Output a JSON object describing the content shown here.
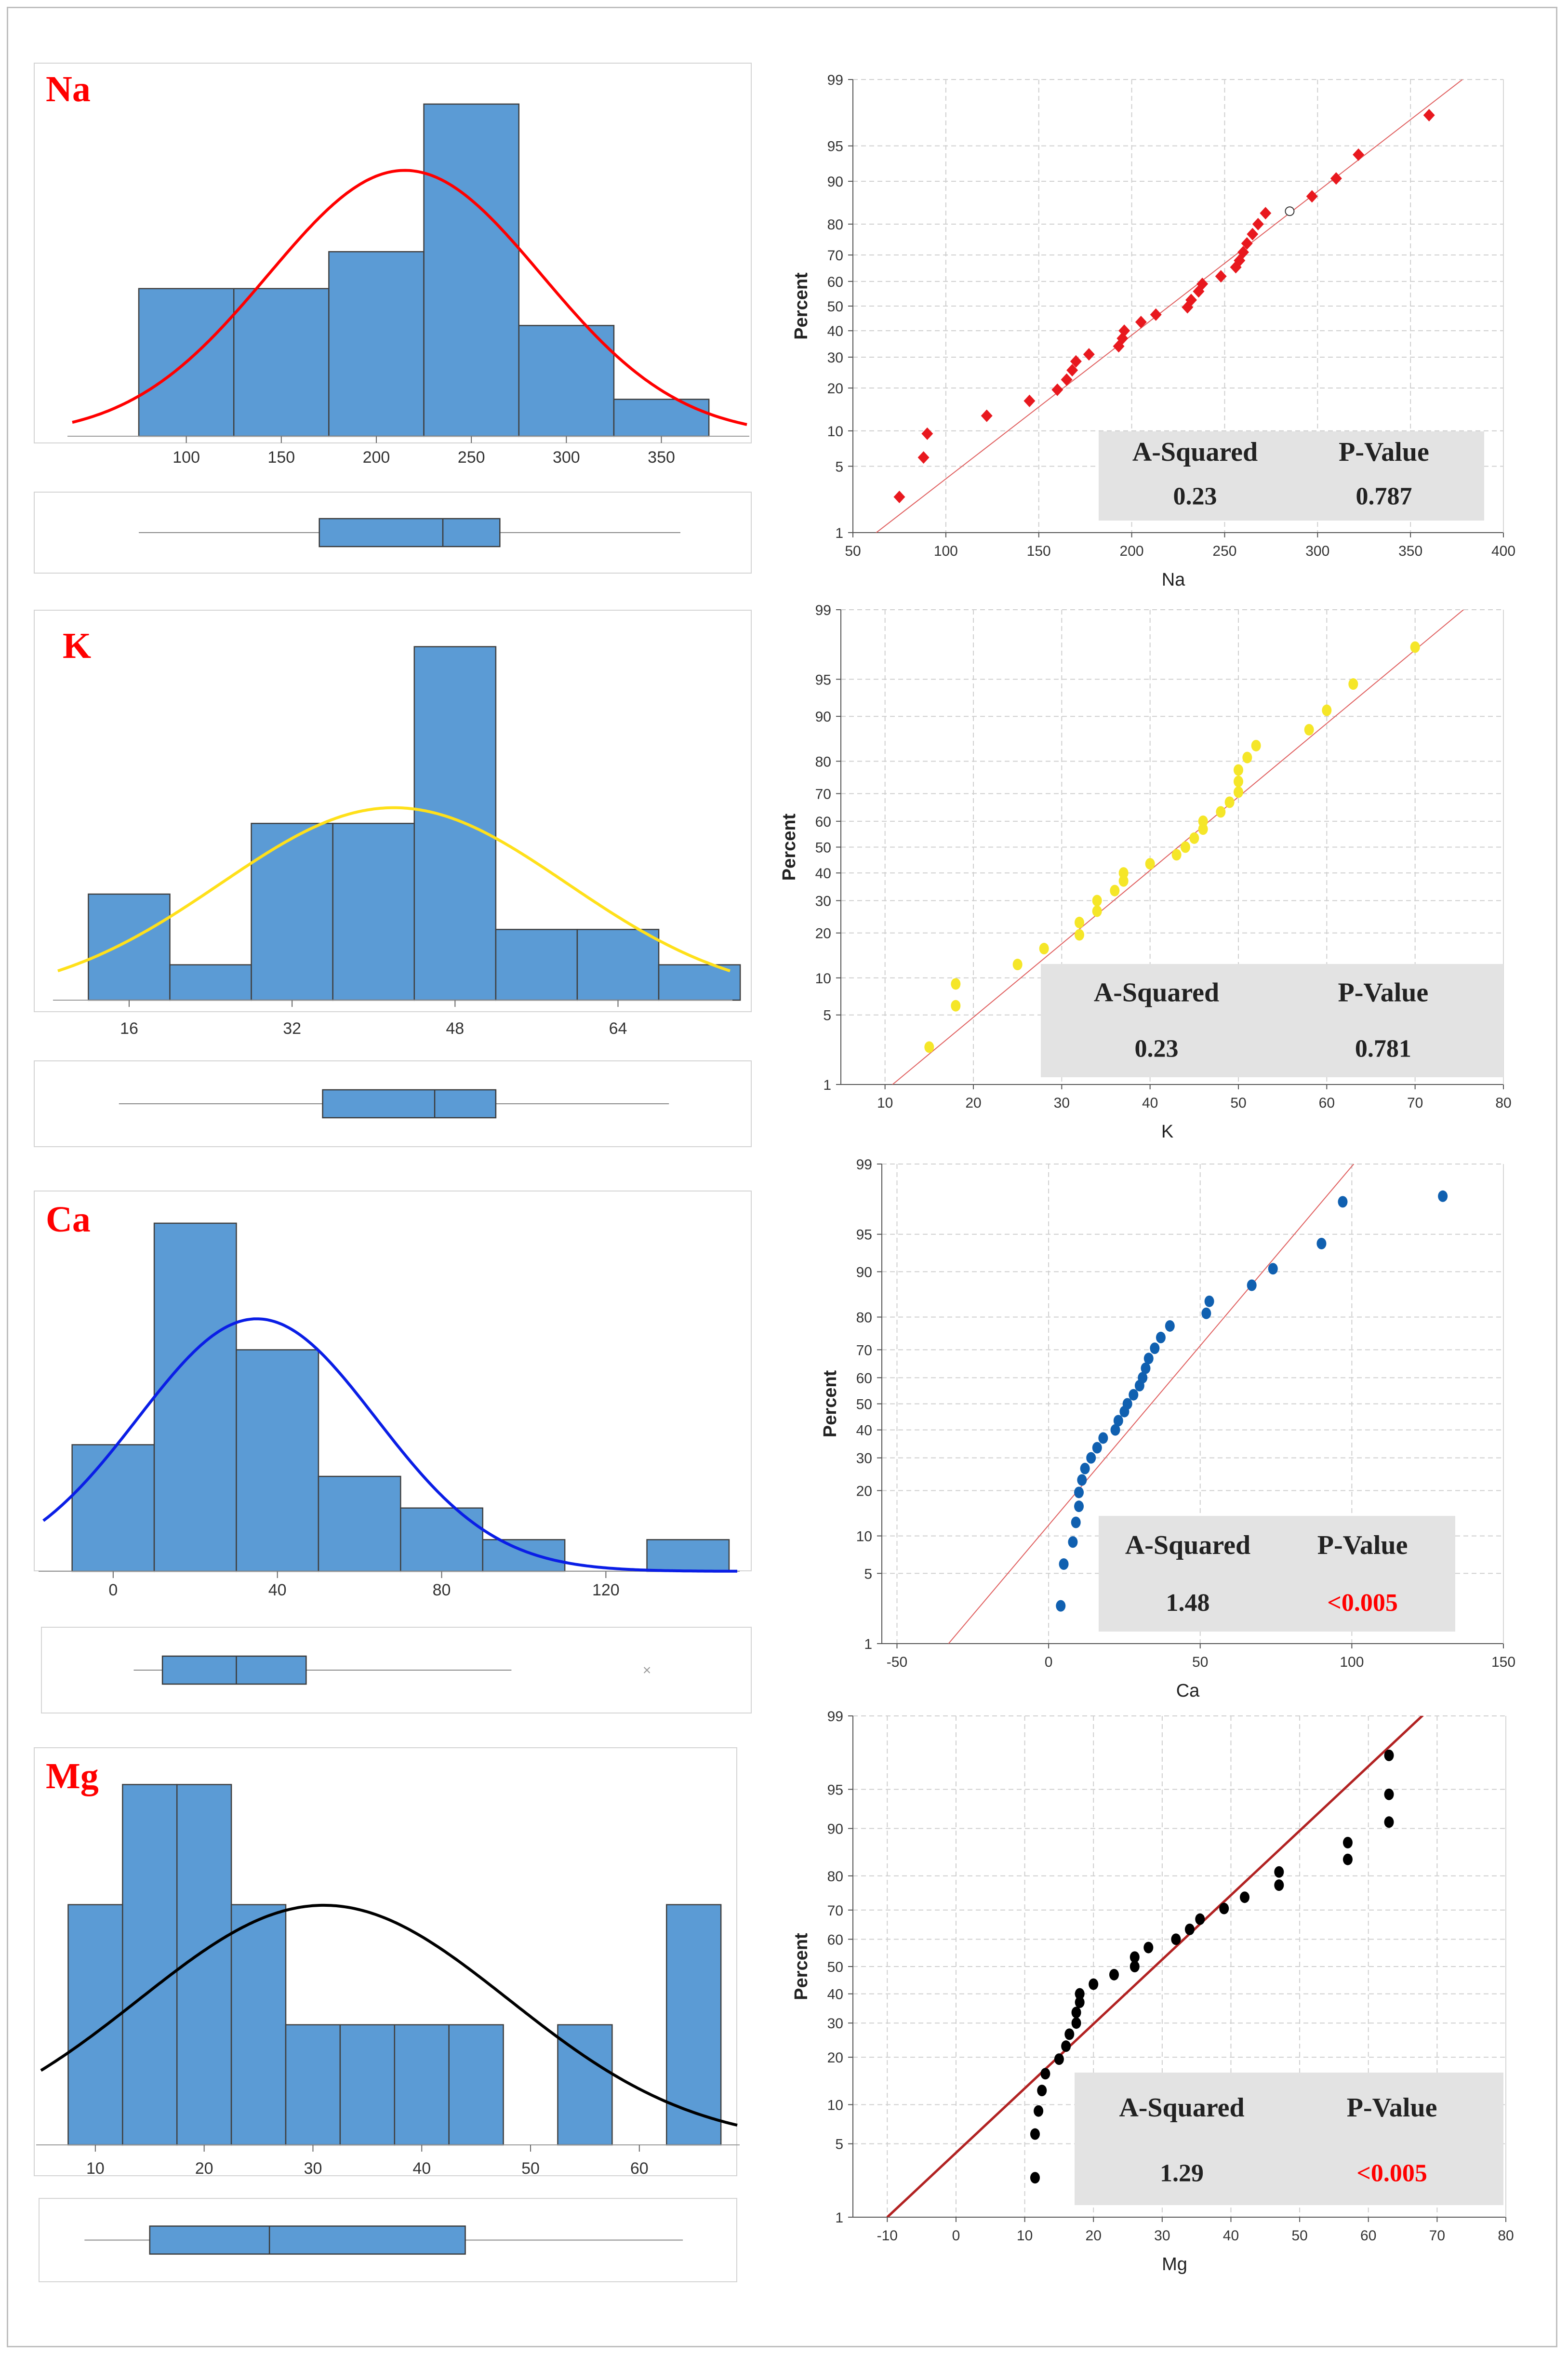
{
  "colors": {
    "bar_fill": "#5b9bd5",
    "bar_stroke": "#3f3f3f",
    "grid": "#cfcfcf",
    "stat_box": "#e3e3e3",
    "label_red": "#ff0000",
    "ref_line": "#e06060"
  },
  "chart_data": [
    {
      "id": "na_hist",
      "type": "histogram",
      "label": "Na",
      "curve_color": "#ff0000",
      "bins": [
        75,
        125,
        175,
        225,
        275,
        325,
        375
      ],
      "counts": [
        4,
        4,
        5,
        9,
        3,
        1
      ],
      "fit_mean": 215,
      "fit_sd": 72,
      "xlim": [
        40,
        395
      ],
      "ymax": 9.6,
      "xticks": [
        "100",
        "150",
        "200",
        "250",
        "300",
        "350"
      ],
      "xtick_values": [
        100,
        150,
        200,
        250,
        300,
        350
      ],
      "boxplot": {
        "min": 75,
        "q1": 170,
        "median": 235,
        "q3": 265,
        "max": 360
      }
    },
    {
      "id": "na_prob",
      "type": "scatter",
      "subtype": "normal-probability",
      "xlabel": "Na",
      "ylabel": "Percent",
      "point_color": "#e8181e",
      "marker": "diamond",
      "xlim": [
        50,
        400
      ],
      "xticks": [
        "50",
        "100",
        "150",
        "200",
        "250",
        "300",
        "350",
        "400"
      ],
      "xtick_values": [
        50,
        100,
        150,
        200,
        250,
        300,
        350,
        400
      ],
      "yticks": [
        "1",
        "5",
        "10",
        "20",
        "30",
        "40",
        "50",
        "60",
        "70",
        "80",
        "90",
        "95",
        "99"
      ],
      "ytick_values": [
        1,
        5,
        10,
        20,
        30,
        40,
        50,
        60,
        70,
        80,
        90,
        95,
        99
      ],
      "line": {
        "x": [
          50,
          400
        ],
        "y": [
          0.6,
          99.6
        ]
      },
      "x": [
        75,
        88,
        90,
        122,
        145,
        160,
        165,
        168,
        170,
        177,
        193,
        195,
        196,
        205,
        213,
        230,
        232,
        236,
        238,
        248,
        256,
        258,
        260,
        262,
        265,
        268,
        272,
        297,
        310,
        322,
        360
      ],
      "y": [
        2.5,
        6,
        9.5,
        13,
        16.5,
        19.5,
        22.5,
        25.5,
        28.5,
        31,
        34,
        37,
        40,
        43.5,
        46.5,
        49.5,
        52.5,
        56,
        59,
        62,
        65.5,
        68,
        71,
        74,
        77,
        80,
        83,
        87,
        90.5,
        94,
        97.5
      ],
      "open_point": {
        "x": 285,
        "y": 83.5
      },
      "stats": {
        "a_squared_label": "A-Squared",
        "p_value_label": "P-Value",
        "a_squared": "0.23",
        "p_value": "0.787",
        "p_value_color": "#222222"
      }
    },
    {
      "id": "k_hist",
      "type": "histogram",
      "label": "K",
      "curve_color": "#ffe01a",
      "bins": [
        12,
        20,
        28,
        36,
        44,
        52,
        60,
        68,
        76
      ],
      "counts": [
        3,
        1,
        5,
        5,
        10,
        2,
        2,
        1
      ],
      "fit_mean": 42,
      "fit_sd": 17,
      "xlim": [
        9,
        75
      ],
      "ymax": 10.5,
      "xticks": [
        "16",
        "32",
        "48",
        "64"
      ],
      "xtick_values": [
        16,
        32,
        48,
        64
      ],
      "boxplot": {
        "min": 15,
        "q1": 35,
        "median": 46,
        "q3": 52,
        "max": 69
      }
    },
    {
      "id": "k_prob",
      "type": "scatter",
      "subtype": "normal-probability",
      "xlabel": "K",
      "ylabel": "Percent",
      "point_color": "#f5e628",
      "marker": "circle",
      "xlim": [
        5,
        80
      ],
      "xticks": [
        "10",
        "20",
        "30",
        "40",
        "50",
        "60",
        "70",
        "80"
      ],
      "xtick_values": [
        10,
        20,
        30,
        40,
        50,
        60,
        70,
        80
      ],
      "yticks": [
        "1",
        "5",
        "10",
        "20",
        "30",
        "40",
        "50",
        "60",
        "70",
        "80",
        "90",
        "95",
        "99"
      ],
      "ytick_values": [
        1,
        5,
        10,
        20,
        30,
        40,
        50,
        60,
        70,
        80,
        90,
        95,
        99
      ],
      "line": {
        "x": [
          5,
          80
        ],
        "y": [
          0.3,
          99.6
        ]
      },
      "x": [
        15,
        18,
        18,
        25,
        28,
        32,
        32,
        34,
        34,
        36,
        37,
        37,
        40,
        43,
        44,
        45,
        46,
        46,
        48,
        49,
        50,
        50,
        50,
        51,
        52,
        58,
        60,
        63,
        70
      ],
      "y": [
        2.5,
        6,
        9,
        12.5,
        16,
        19.5,
        23,
        26.5,
        30,
        33.5,
        37,
        40,
        43.5,
        47,
        50,
        53.5,
        57,
        60,
        63.5,
        67,
        70.5,
        74,
        77.5,
        81,
        84,
        87.5,
        91,
        94.5,
        97.5
      ],
      "stats": {
        "a_squared_label": "A-Squared",
        "p_value_label": "P-Value",
        "a_squared": "0.23",
        "p_value": "0.781",
        "p_value_color": "#222222"
      }
    },
    {
      "id": "ca_hist",
      "type": "histogram",
      "label": "Ca",
      "curve_color": "#0a1ee6",
      "bins": [
        -10,
        10,
        30,
        50,
        70,
        90,
        110,
        130,
        150
      ],
      "counts": [
        4,
        11,
        7,
        3,
        2,
        1,
        0,
        1
      ],
      "fit_mean": 35,
      "fit_sd": 29,
      "xlim": [
        -17,
        152
      ],
      "ymax": 11.5,
      "xticks": [
        "0",
        "40",
        "80",
        "120"
      ],
      "xtick_values": [
        0,
        40,
        80,
        120
      ],
      "boxplot": {
        "min": 5,
        "q1": 12,
        "median": 30,
        "q3": 47,
        "max": 97,
        "outlier": 130
      }
    },
    {
      "id": "ca_prob",
      "type": "scatter",
      "subtype": "normal-probability",
      "xlabel": "Ca",
      "ylabel": "Percent",
      "point_color": "#1060b0",
      "marker": "circle",
      "xlim": [
        -55,
        150
      ],
      "xticks": [
        "-50",
        "0",
        "50",
        "100",
        "150"
      ],
      "xtick_values": [
        -50,
        0,
        50,
        100,
        150
      ],
      "yticks": [
        "1",
        "5",
        "10",
        "20",
        "30",
        "40",
        "50",
        "60",
        "70",
        "80",
        "90",
        "95",
        "99"
      ],
      "ytick_values": [
        1,
        5,
        10,
        20,
        30,
        40,
        50,
        60,
        70,
        80,
        90,
        95,
        99
      ],
      "line": {
        "x": [
          -33,
          103
        ],
        "y": [
          1,
          99.2
        ]
      },
      "x": [
        4,
        5,
        8,
        9,
        10,
        10,
        11,
        12,
        14,
        16,
        18,
        22,
        23,
        25,
        26,
        28,
        30,
        31,
        32,
        33,
        35,
        37,
        40,
        52,
        53,
        67,
        74,
        90,
        97,
        130
      ],
      "y": [
        2.5,
        6,
        9,
        12.5,
        16,
        19.5,
        23,
        26.5,
        30,
        33.5,
        37,
        40,
        43.5,
        47,
        50,
        53.5,
        57,
        60,
        63.5,
        67,
        70.5,
        74,
        77.5,
        81,
        84,
        87.5,
        90.5,
        94,
        97.5,
        97.8
      ],
      "stats": {
        "a_squared_label": "A-Squared",
        "p_value_label": "P-Value",
        "a_squared": "1.48",
        "p_value": "<0.005",
        "p_value_color": "#ff0000"
      }
    },
    {
      "id": "mg_hist",
      "type": "histogram",
      "label": "Mg",
      "curve_color": "#000000",
      "bins": [
        7.5,
        12.5,
        17.5,
        22.5,
        27.5,
        32.5,
        37.5,
        42.5,
        47.5,
        52.5,
        57.5,
        62.5,
        67.5
      ],
      "counts": [
        4,
        6,
        6,
        4,
        2,
        2,
        2,
        2,
        0,
        2,
        0,
        4
      ],
      "fit_mean": 31,
      "fit_sd": 17,
      "xlim": [
        5,
        69
      ],
      "ymax": 6.3,
      "xticks": [
        "10",
        "20",
        "30",
        "40",
        "50",
        "60"
      ],
      "xtick_values": [
        10,
        20,
        30,
        40,
        50,
        60
      ],
      "boxplot": {
        "min": 9,
        "q1": 15,
        "median": 26,
        "q3": 44,
        "max": 64
      }
    },
    {
      "id": "mg_prob",
      "type": "scatter",
      "subtype": "normal-probability",
      "xlabel": "Mg",
      "ylabel": "Percent",
      "point_color": "#000000",
      "marker": "circle",
      "xlim": [
        -15,
        80
      ],
      "xticks": [
        "-10",
        "0",
        "10",
        "20",
        "30",
        "40",
        "50",
        "60",
        "70",
        "80"
      ],
      "xtick_values": [
        -10,
        0,
        10,
        20,
        30,
        40,
        50,
        60,
        70,
        80
      ],
      "yticks": [
        "1",
        "5",
        "10",
        "20",
        "30",
        "40",
        "50",
        "60",
        "70",
        "80",
        "90",
        "95",
        "99"
      ],
      "ytick_values": [
        1,
        5,
        10,
        20,
        30,
        40,
        50,
        60,
        70,
        80,
        90,
        95,
        99
      ],
      "line": {
        "x": [
          -10,
          72
        ],
        "y": [
          1,
          99.5
        ]
      },
      "x": [
        11.5,
        11.5,
        12,
        12.5,
        13,
        15,
        16,
        16.5,
        17.5,
        17.5,
        18,
        18,
        20,
        23,
        26,
        26,
        28,
        32,
        34,
        35.5,
        39,
        42,
        47,
        47,
        57,
        57,
        63,
        63,
        63
      ],
      "y": [
        2.5,
        6,
        9,
        12.5,
        16,
        19.5,
        23,
        26.5,
        30,
        33.5,
        37,
        40,
        43.5,
        47,
        50,
        53.5,
        57,
        60,
        63.5,
        67,
        70.5,
        74,
        77.5,
        81,
        84,
        87.5,
        91,
        94.5,
        97.5
      ],
      "stats": {
        "a_squared_label": "A-Squared",
        "p_value_label": "P-Value",
        "a_squared": "1.29",
        "p_value": "<0.005",
        "p_value_color": "#ff0000"
      }
    }
  ]
}
